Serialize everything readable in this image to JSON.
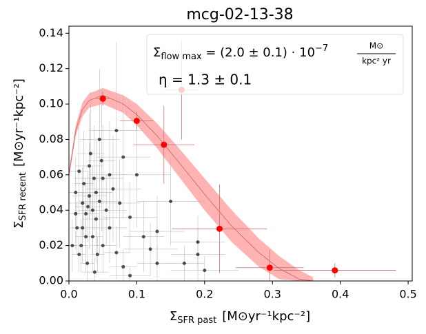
{
  "chart_data": {
    "type": "scatter",
    "title": "mcg-02-13-38",
    "xlabel": {
      "symbol": "Σ",
      "sub": "SFR past",
      "unit": "[M⊙yr⁻¹kpc⁻²]"
    },
    "ylabel": {
      "symbol": "Σ",
      "sub": "SFR recent",
      "unit": "[M⊙yr⁻¹kpc⁻²]"
    },
    "xlim": [
      0,
      0.506
    ],
    "ylim": [
      0,
      0.144
    ],
    "xticks": [
      {
        "value": 0,
        "label": "0.0"
      },
      0.1,
      0.2,
      0.3,
      0.4,
      0.5
    ],
    "yticks": [
      {
        "value": 0,
        "label": "0.00"
      },
      0.02,
      0.04,
      0.06,
      0.08,
      {
        "value": 0.1,
        "label": "0.10"
      },
      0.12,
      0.14
    ],
    "annotation": {
      "line1": {
        "symbol": "Σ̇",
        "sub": "flow max",
        "mid": " = (2.0 ± 0.1) · 10",
        "sup": "−7",
        "num": "M⊙",
        "den": "kpc² yr"
      },
      "line2": "η = 1.3 ± 0.1"
    },
    "series": [
      {
        "color": "#1a1a1a",
        "err_color": "#b0b0b0",
        "x": [
          0.01,
          0.012,
          0.015,
          0.018,
          0.02,
          0.022,
          0.025,
          0.027,
          0.03,
          0.032,
          0.035,
          0.037,
          0.04,
          0.042,
          0.045,
          0.048,
          0.05,
          0.055,
          0.06,
          0.065,
          0.07,
          0.075,
          0.08,
          0.09,
          0.1,
          0.11,
          0.12,
          0.13,
          0.15,
          0.17,
          0.19,
          0.02,
          0.03,
          0.04,
          0.015,
          0.025,
          0.035,
          0.045,
          0.06,
          0.08,
          0.01,
          0.028,
          0.038,
          0.05,
          0.07,
          0.09,
          0.13,
          0.2,
          0.19,
          0.005
        ],
        "y": [
          0.05,
          0.03,
          0.062,
          0.02,
          0.044,
          0.055,
          0.038,
          0.01,
          0.048,
          0.072,
          0.025,
          0.058,
          0.035,
          0.015,
          0.045,
          0.068,
          0.02,
          0.04,
          0.03,
          0.052,
          0.016,
          0.044,
          0.008,
          0.036,
          0.06,
          0.025,
          0.018,
          0.01,
          0.045,
          0.01,
          0.022,
          0.03,
          0.065,
          0.05,
          0.015,
          0.025,
          0.04,
          0.08,
          0.06,
          0.07,
          0.038,
          0.042,
          0.005,
          0.058,
          0.085,
          0.003,
          0.028,
          0.006,
          0.015,
          0.02
        ],
        "xerr": [
          0.01,
          0.01,
          0.015,
          0.01,
          0.02,
          0.015,
          0.02,
          0.01,
          0.025,
          0.02,
          0.015,
          0.03,
          0.02,
          0.01,
          0.03,
          0.02,
          0.02,
          0.03,
          0.025,
          0.04,
          0.02,
          0.03,
          0.02,
          0.04,
          0.05,
          0.03,
          0.04,
          0.03,
          0.05,
          0.03,
          0.04,
          0.015,
          0.02,
          0.025,
          0.01,
          0.015,
          0.02,
          0.03,
          0.03,
          0.04,
          0.01,
          0.02,
          0.02,
          0.03,
          0.04,
          0.03,
          0.04,
          0.05,
          0.04,
          0.005
        ],
        "yerr": [
          0.02,
          0.015,
          0.025,
          0.015,
          0.02,
          0.03,
          0.02,
          0.01,
          0.03,
          0.035,
          0.02,
          0.03,
          0.025,
          0.01,
          0.03,
          0.04,
          0.015,
          0.02,
          0.02,
          0.03,
          0.015,
          0.025,
          0.01,
          0.02,
          0.03,
          0.02,
          0.015,
          0.01,
          0.025,
          0.01,
          0.015,
          0.02,
          0.03,
          0.03,
          0.01,
          0.02,
          0.025,
          0.04,
          0.03,
          0.035,
          0.02,
          0.02,
          0.008,
          0.03,
          0.05,
          0.005,
          0.02,
          0.008,
          0.015,
          0.015
        ]
      },
      {
        "color": "#ff0000",
        "err_color": "#c87070",
        "x": [
          0.05,
          0.1,
          0.14,
          0.166,
          0.222,
          0.296,
          0.392
        ],
        "y": [
          0.103,
          0.0905,
          0.077,
          0.108,
          0.0295,
          0.0075,
          0.006
        ],
        "xerr": [
          0.01,
          0.025,
          0.045,
          0.025,
          0.07,
          0.05,
          0.09
        ],
        "yerr": [
          0.004,
          0.005,
          0.022,
          0.028,
          0.025,
          0.01,
          0.004
        ]
      }
    ],
    "model": {
      "color": "#d06060",
      "band_color": "#ffb3b3",
      "x": [
        0,
        0.01,
        0.02,
        0.03,
        0.05,
        0.08,
        0.1,
        0.13,
        0.16,
        0.2,
        0.24,
        0.28,
        0.31,
        0.34,
        0.36
      ],
      "y": [
        0.06,
        0.085,
        0.097,
        0.102,
        0.105,
        0.1,
        0.094,
        0.082,
        0.068,
        0.049,
        0.031,
        0.016,
        0.007,
        0.001,
        0
      ],
      "lower": [
        0.058,
        0.082,
        0.093,
        0.098,
        0.1,
        0.095,
        0.088,
        0.075,
        0.06,
        0.04,
        0.022,
        0.008,
        0.001,
        0,
        0
      ],
      "upper": [
        0.062,
        0.088,
        0.101,
        0.106,
        0.109,
        0.105,
        0.1,
        0.089,
        0.076,
        0.058,
        0.04,
        0.024,
        0.014,
        0.006,
        0.002
      ]
    }
  }
}
